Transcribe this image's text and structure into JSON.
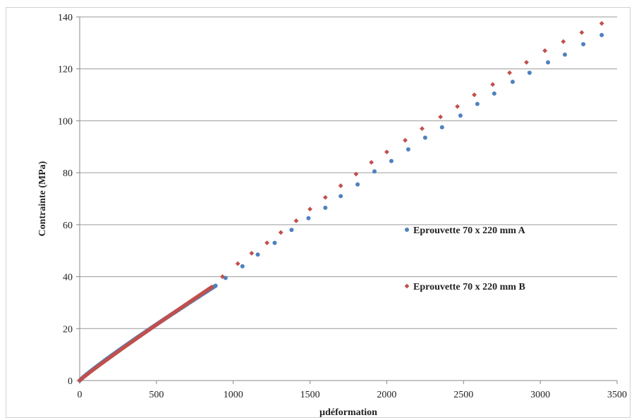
{
  "chart_data": {
    "type": "scatter",
    "title": "",
    "xlabel": "µdéformation",
    "ylabel": "Contrainte (MPa)",
    "xlim": [
      0,
      3500
    ],
    "ylim": [
      0,
      140
    ],
    "xticks": [
      0,
      500,
      1000,
      1500,
      2000,
      2500,
      3000,
      3500
    ],
    "yticks": [
      0,
      20,
      40,
      60,
      80,
      100,
      120,
      140
    ],
    "grid": "horizontal",
    "legend_position": "right",
    "series": [
      {
        "name": "Eprouvette 70 x 220 mm A",
        "color": "#4f81bd",
        "marker": "circle",
        "dense_segment": {
          "x_start": 0,
          "x_end": 885,
          "y_start": 0,
          "y_end": 36.5
        },
        "x": [
          950,
          1060,
          1160,
          1270,
          1380,
          1490,
          1600,
          1700,
          1810,
          1920,
          2030,
          2140,
          2250,
          2360,
          2480,
          2590,
          2700,
          2820,
          2930,
          3050,
          3160,
          3280,
          3400
        ],
        "y": [
          39.5,
          44,
          48.5,
          53,
          58,
          62.5,
          66.5,
          71,
          75.5,
          80.5,
          84.5,
          89,
          93.5,
          97.5,
          102,
          106.5,
          110.5,
          115,
          118.5,
          122.5,
          125.5,
          129.5,
          133
        ]
      },
      {
        "name": "Eprouvette 70 x 220 mm B",
        "color": "#c0504d",
        "marker": "diamond",
        "dense_segment": {
          "x_start": 0,
          "x_end": 860,
          "y_start": 0,
          "y_end": 36
        },
        "x": [
          930,
          1030,
          1120,
          1220,
          1310,
          1410,
          1500,
          1600,
          1700,
          1800,
          1900,
          2000,
          2120,
          2230,
          2350,
          2460,
          2570,
          2690,
          2800,
          2910,
          3030,
          3150,
          3270,
          3400
        ],
        "y": [
          40,
          45,
          49,
          53,
          57,
          61.5,
          66,
          70.5,
          75,
          79.5,
          84,
          88,
          92.5,
          97,
          101.5,
          105.5,
          110,
          114,
          118.5,
          122.5,
          127,
          130.5,
          134,
          137.5
        ]
      }
    ]
  }
}
